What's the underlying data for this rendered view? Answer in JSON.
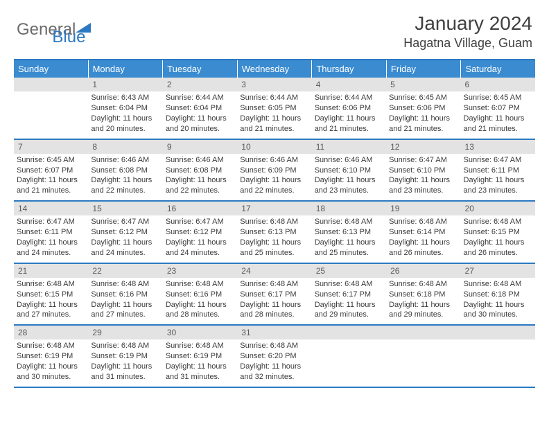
{
  "logo": {
    "text_gray": "General",
    "text_blue": "Blue"
  },
  "title": "January 2024",
  "location": "Hagatna Village, Guam",
  "colors": {
    "header_bar": "#3a8bd0",
    "border": "#2b79c2",
    "daynum_bg": "#e3e3e3",
    "text": "#3b3b3b"
  },
  "typography": {
    "title_fontsize": 28,
    "location_fontsize": 18,
    "dow_fontsize": 13,
    "cell_fontsize": 11
  },
  "dow": [
    "Sunday",
    "Monday",
    "Tuesday",
    "Wednesday",
    "Thursday",
    "Friday",
    "Saturday"
  ],
  "weeks": [
    [
      null,
      {
        "n": "1",
        "l1": "Sunrise: 6:43 AM",
        "l2": "Sunset: 6:04 PM",
        "l3": "Daylight: 11 hours",
        "l4": "and 20 minutes."
      },
      {
        "n": "2",
        "l1": "Sunrise: 6:44 AM",
        "l2": "Sunset: 6:04 PM",
        "l3": "Daylight: 11 hours",
        "l4": "and 20 minutes."
      },
      {
        "n": "3",
        "l1": "Sunrise: 6:44 AM",
        "l2": "Sunset: 6:05 PM",
        "l3": "Daylight: 11 hours",
        "l4": "and 21 minutes."
      },
      {
        "n": "4",
        "l1": "Sunrise: 6:44 AM",
        "l2": "Sunset: 6:06 PM",
        "l3": "Daylight: 11 hours",
        "l4": "and 21 minutes."
      },
      {
        "n": "5",
        "l1": "Sunrise: 6:45 AM",
        "l2": "Sunset: 6:06 PM",
        "l3": "Daylight: 11 hours",
        "l4": "and 21 minutes."
      },
      {
        "n": "6",
        "l1": "Sunrise: 6:45 AM",
        "l2": "Sunset: 6:07 PM",
        "l3": "Daylight: 11 hours",
        "l4": "and 21 minutes."
      }
    ],
    [
      {
        "n": "7",
        "l1": "Sunrise: 6:45 AM",
        "l2": "Sunset: 6:07 PM",
        "l3": "Daylight: 11 hours",
        "l4": "and 21 minutes."
      },
      {
        "n": "8",
        "l1": "Sunrise: 6:46 AM",
        "l2": "Sunset: 6:08 PM",
        "l3": "Daylight: 11 hours",
        "l4": "and 22 minutes."
      },
      {
        "n": "9",
        "l1": "Sunrise: 6:46 AM",
        "l2": "Sunset: 6:08 PM",
        "l3": "Daylight: 11 hours",
        "l4": "and 22 minutes."
      },
      {
        "n": "10",
        "l1": "Sunrise: 6:46 AM",
        "l2": "Sunset: 6:09 PM",
        "l3": "Daylight: 11 hours",
        "l4": "and 22 minutes."
      },
      {
        "n": "11",
        "l1": "Sunrise: 6:46 AM",
        "l2": "Sunset: 6:10 PM",
        "l3": "Daylight: 11 hours",
        "l4": "and 23 minutes."
      },
      {
        "n": "12",
        "l1": "Sunrise: 6:47 AM",
        "l2": "Sunset: 6:10 PM",
        "l3": "Daylight: 11 hours",
        "l4": "and 23 minutes."
      },
      {
        "n": "13",
        "l1": "Sunrise: 6:47 AM",
        "l2": "Sunset: 6:11 PM",
        "l3": "Daylight: 11 hours",
        "l4": "and 23 minutes."
      }
    ],
    [
      {
        "n": "14",
        "l1": "Sunrise: 6:47 AM",
        "l2": "Sunset: 6:11 PM",
        "l3": "Daylight: 11 hours",
        "l4": "and 24 minutes."
      },
      {
        "n": "15",
        "l1": "Sunrise: 6:47 AM",
        "l2": "Sunset: 6:12 PM",
        "l3": "Daylight: 11 hours",
        "l4": "and 24 minutes."
      },
      {
        "n": "16",
        "l1": "Sunrise: 6:47 AM",
        "l2": "Sunset: 6:12 PM",
        "l3": "Daylight: 11 hours",
        "l4": "and 24 minutes."
      },
      {
        "n": "17",
        "l1": "Sunrise: 6:48 AM",
        "l2": "Sunset: 6:13 PM",
        "l3": "Daylight: 11 hours",
        "l4": "and 25 minutes."
      },
      {
        "n": "18",
        "l1": "Sunrise: 6:48 AM",
        "l2": "Sunset: 6:13 PM",
        "l3": "Daylight: 11 hours",
        "l4": "and 25 minutes."
      },
      {
        "n": "19",
        "l1": "Sunrise: 6:48 AM",
        "l2": "Sunset: 6:14 PM",
        "l3": "Daylight: 11 hours",
        "l4": "and 26 minutes."
      },
      {
        "n": "20",
        "l1": "Sunrise: 6:48 AM",
        "l2": "Sunset: 6:15 PM",
        "l3": "Daylight: 11 hours",
        "l4": "and 26 minutes."
      }
    ],
    [
      {
        "n": "21",
        "l1": "Sunrise: 6:48 AM",
        "l2": "Sunset: 6:15 PM",
        "l3": "Daylight: 11 hours",
        "l4": "and 27 minutes."
      },
      {
        "n": "22",
        "l1": "Sunrise: 6:48 AM",
        "l2": "Sunset: 6:16 PM",
        "l3": "Daylight: 11 hours",
        "l4": "and 27 minutes."
      },
      {
        "n": "23",
        "l1": "Sunrise: 6:48 AM",
        "l2": "Sunset: 6:16 PM",
        "l3": "Daylight: 11 hours",
        "l4": "and 28 minutes."
      },
      {
        "n": "24",
        "l1": "Sunrise: 6:48 AM",
        "l2": "Sunset: 6:17 PM",
        "l3": "Daylight: 11 hours",
        "l4": "and 28 minutes."
      },
      {
        "n": "25",
        "l1": "Sunrise: 6:48 AM",
        "l2": "Sunset: 6:17 PM",
        "l3": "Daylight: 11 hours",
        "l4": "and 29 minutes."
      },
      {
        "n": "26",
        "l1": "Sunrise: 6:48 AM",
        "l2": "Sunset: 6:18 PM",
        "l3": "Daylight: 11 hours",
        "l4": "and 29 minutes."
      },
      {
        "n": "27",
        "l1": "Sunrise: 6:48 AM",
        "l2": "Sunset: 6:18 PM",
        "l3": "Daylight: 11 hours",
        "l4": "and 30 minutes."
      }
    ],
    [
      {
        "n": "28",
        "l1": "Sunrise: 6:48 AM",
        "l2": "Sunset: 6:19 PM",
        "l3": "Daylight: 11 hours",
        "l4": "and 30 minutes."
      },
      {
        "n": "29",
        "l1": "Sunrise: 6:48 AM",
        "l2": "Sunset: 6:19 PM",
        "l3": "Daylight: 11 hours",
        "l4": "and 31 minutes."
      },
      {
        "n": "30",
        "l1": "Sunrise: 6:48 AM",
        "l2": "Sunset: 6:19 PM",
        "l3": "Daylight: 11 hours",
        "l4": "and 31 minutes."
      },
      {
        "n": "31",
        "l1": "Sunrise: 6:48 AM",
        "l2": "Sunset: 6:20 PM",
        "l3": "Daylight: 11 hours",
        "l4": "and 32 minutes."
      },
      null,
      null,
      null
    ]
  ]
}
